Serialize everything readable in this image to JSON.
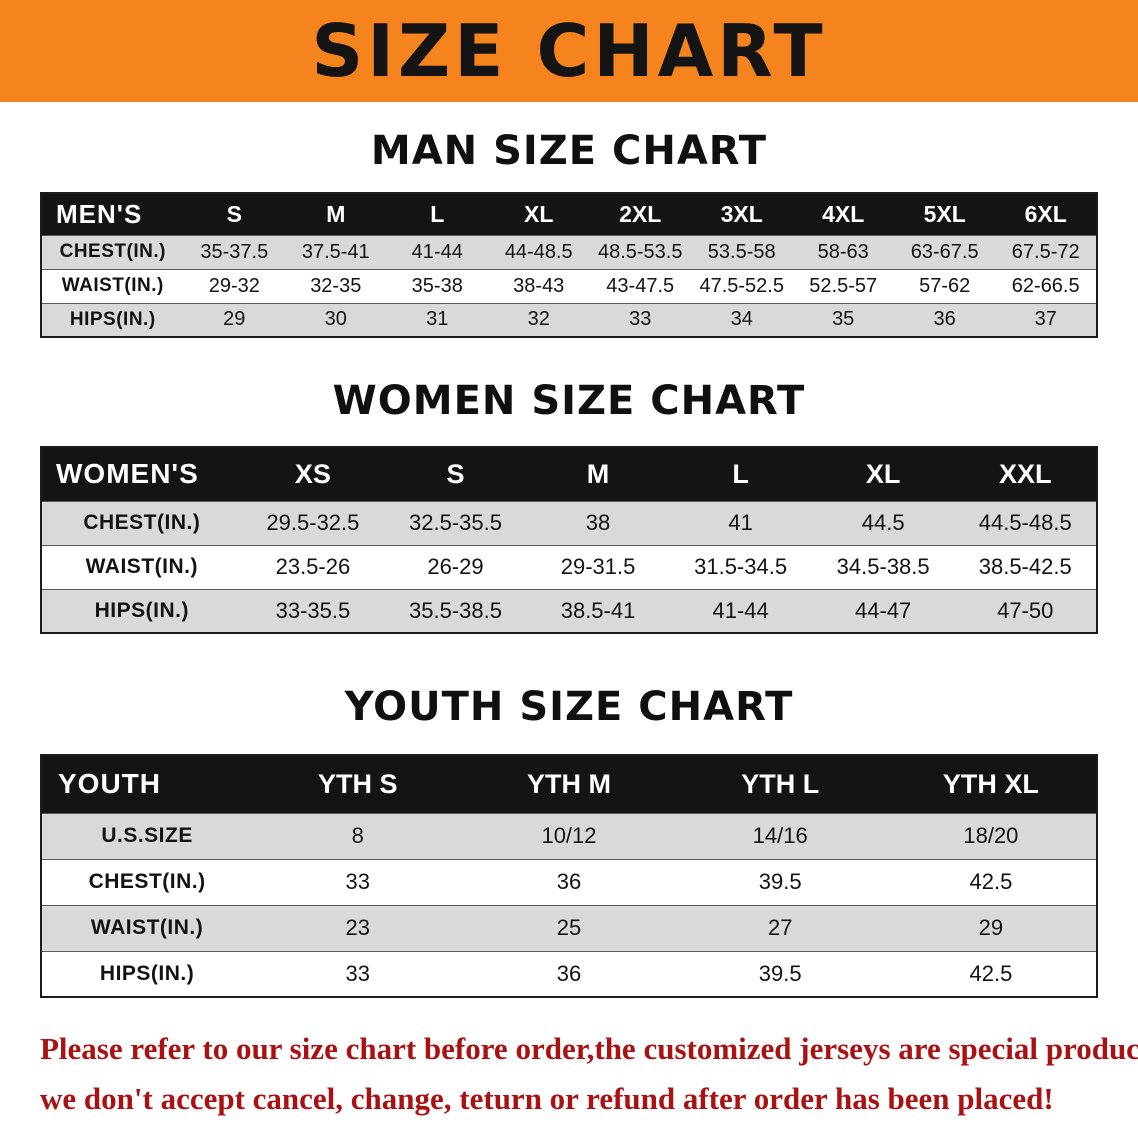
{
  "banner": {
    "title": "SIZE CHART"
  },
  "colors": {
    "banner_bg": "#f5841f",
    "header_row_bg": "#141414",
    "alt_row_bg": "#d9d9d9",
    "warning_text": "#aa1212"
  },
  "sections": [
    {
      "title": "MAN SIZE CHART",
      "table": {
        "header": [
          "MEN'S",
          "S",
          "M",
          "L",
          "XL",
          "2XL",
          "3XL",
          "4XL",
          "5XL",
          "6XL"
        ],
        "rows": [
          {
            "label": "CHEST(IN.)",
            "values": [
              "35-37.5",
              "37.5-41",
              "41-44",
              "44-48.5",
              "48.5-53.5",
              "53.5-58",
              "58-63",
              "63-67.5",
              "67.5-72"
            ]
          },
          {
            "label": "WAIST(IN.)",
            "values": [
              "29-32",
              "32-35",
              "35-38",
              "38-43",
              "43-47.5",
              "47.5-52.5",
              "52.5-57",
              "57-62",
              "62-66.5"
            ]
          },
          {
            "label": "HIPS(IN.)",
            "values": [
              "29",
              "30",
              "31",
              "32",
              "33",
              "34",
              "35",
              "36",
              "37"
            ]
          }
        ]
      }
    },
    {
      "title": "WOMEN SIZE CHART",
      "table": {
        "header": [
          "WOMEN'S",
          "XS",
          "S",
          "M",
          "L",
          "XL",
          "XXL"
        ],
        "rows": [
          {
            "label": "CHEST(IN.)",
            "values": [
              "29.5-32.5",
              "32.5-35.5",
              "38",
              "41",
              "44.5",
              "44.5-48.5"
            ]
          },
          {
            "label": "WAIST(IN.)",
            "values": [
              "23.5-26",
              "26-29",
              "29-31.5",
              "31.5-34.5",
              "34.5-38.5",
              "38.5-42.5"
            ]
          },
          {
            "label": "HIPS(IN.)",
            "values": [
              "33-35.5",
              "35.5-38.5",
              "38.5-41",
              "41-44",
              "44-47",
              "47-50"
            ]
          }
        ]
      }
    },
    {
      "title": "YOUTH SIZE CHART",
      "table": {
        "header": [
          "YOUTH",
          "YTH S",
          "YTH M",
          "YTH L",
          "YTH XL"
        ],
        "rows": [
          {
            "label": "U.S.SIZE",
            "values": [
              "8",
              "10/12",
              "14/16",
              "18/20"
            ]
          },
          {
            "label": "CHEST(IN.)",
            "values": [
              "33",
              "36",
              "39.5",
              "42.5"
            ]
          },
          {
            "label": "WAIST(IN.)",
            "values": [
              "23",
              "25",
              "27",
              "29"
            ]
          },
          {
            "label": "HIPS(IN.)",
            "values": [
              "33",
              "36",
              "39.5",
              "42.5"
            ]
          }
        ]
      }
    }
  ],
  "footer": {
    "line1": "Please refer to our size chart before order,the customized jerseys are special products,",
    "line2": "we don't accept cancel, change, teturn or refund after order has been placed!"
  }
}
